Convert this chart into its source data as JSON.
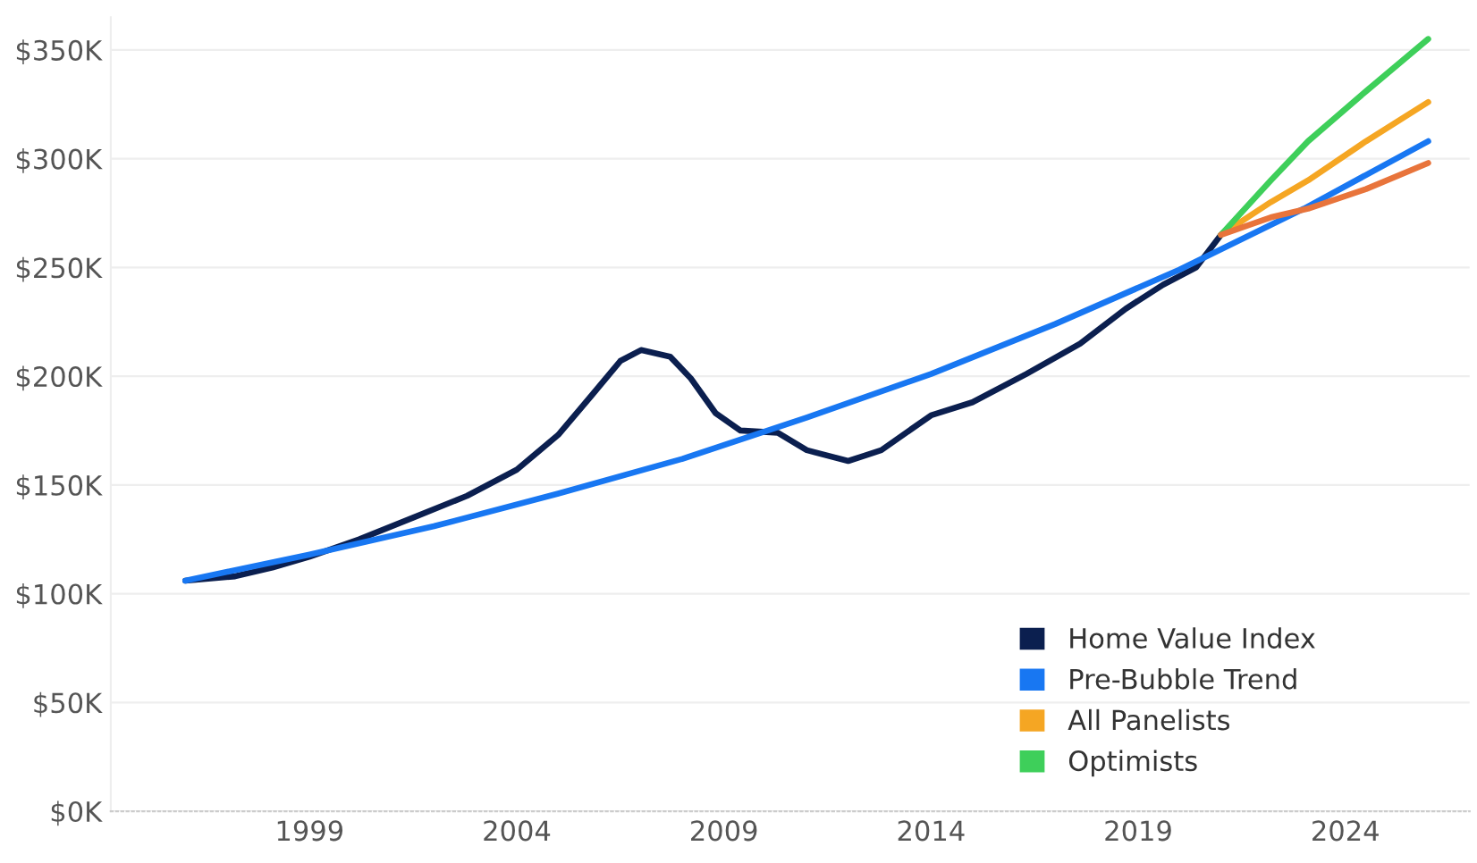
{
  "chart_data": {
    "type": "line",
    "series": [
      {
        "name": "Home Value Index",
        "color": "#0b1f4f",
        "x": [
          1996.0,
          1997.2,
          1998.1,
          1999.0,
          2000.2,
          2001.5,
          2002.8,
          2004.0,
          2005.0,
          2005.8,
          2006.5,
          2007.0,
          2007.7,
          2008.2,
          2008.8,
          2009.4,
          2010.3,
          2011.0,
          2012.0,
          2012.8,
          2014.0,
          2015.0,
          2016.3,
          2017.6,
          2018.7,
          2019.6,
          2020.4,
          2021.0
        ],
        "values": [
          106,
          108,
          112,
          117,
          125,
          135,
          145,
          157,
          173,
          191,
          207,
          212,
          209,
          199,
          183,
          175,
          174,
          166,
          161,
          166,
          182,
          188,
          201,
          215,
          231,
          242,
          250,
          265
        ]
      },
      {
        "name": "Pre-Bubble Trend",
        "color": "#1877f2",
        "x": [
          1996,
          1999,
          2002,
          2005,
          2008,
          2011,
          2014,
          2017,
          2020,
          2023,
          2026
        ],
        "values": [
          106,
          118,
          131,
          146,
          162,
          181,
          201,
          224,
          249,
          277,
          308
        ]
      },
      {
        "name": "All Panelists",
        "color": "#f5a623",
        "x": [
          2021.0,
          2022.2,
          2023.1,
          2024.5,
          2026.0
        ],
        "values": [
          265,
          280,
          290,
          308,
          326
        ]
      },
      {
        "name": "Optimists",
        "color": "#3ecf5a",
        "x": [
          2021.0,
          2022.2,
          2023.1,
          2024.5,
          2026.0
        ],
        "values": [
          265,
          290,
          308,
          331,
          355
        ]
      },
      {
        "color": "#e8743b",
        "x": [
          2021.0,
          2022.2,
          2023.1,
          2024.5,
          2026.0
        ],
        "values": [
          265,
          273,
          277,
          286,
          298
        ]
      }
    ],
    "xlim": [
      1994.2,
      2027
    ],
    "xticks": [
      1999,
      2004,
      2009,
      2014,
      2019,
      2024
    ],
    "ylim": [
      0,
      365
    ],
    "yticks": [
      {
        "value": 0,
        "label": "$0K"
      },
      {
        "value": 50,
        "label": "$50K"
      },
      {
        "value": 100,
        "label": "$100K"
      },
      {
        "value": 150,
        "label": "$150K"
      },
      {
        "value": 200,
        "label": "$200K"
      },
      {
        "value": 250,
        "label": "$250K"
      },
      {
        "value": 300,
        "label": "$300K"
      },
      {
        "value": 350,
        "label": "$350K"
      }
    ],
    "grid": "y",
    "legend": "bottom right",
    "marker": "none",
    "line_style": "solid"
  }
}
